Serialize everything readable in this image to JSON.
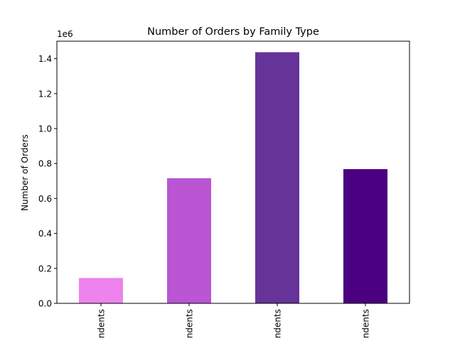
{
  "chart_data": {
    "type": "bar",
    "title": "Number of Orders by Family Type",
    "ylabel": "Number of Orders",
    "xlabel": "",
    "y_multiplier_label": "1e6",
    "categories": [
      "ndents",
      "ndents",
      "ndents",
      "ndents"
    ],
    "values": [
      145000,
      716000,
      1437000,
      768000
    ],
    "colors": [
      "#ee82ee",
      "#ba55d3",
      "#663399",
      "#4b0082"
    ],
    "ylim": [
      0,
      1500000
    ],
    "yticks": [
      0,
      200000,
      400000,
      600000,
      800000,
      1000000,
      1200000,
      1400000
    ],
    "ytick_labels": [
      "0.0",
      "0.2",
      "0.4",
      "0.6",
      "0.8",
      "1.0",
      "1.2",
      "1.4"
    ],
    "grid": false,
    "legend": "none"
  }
}
